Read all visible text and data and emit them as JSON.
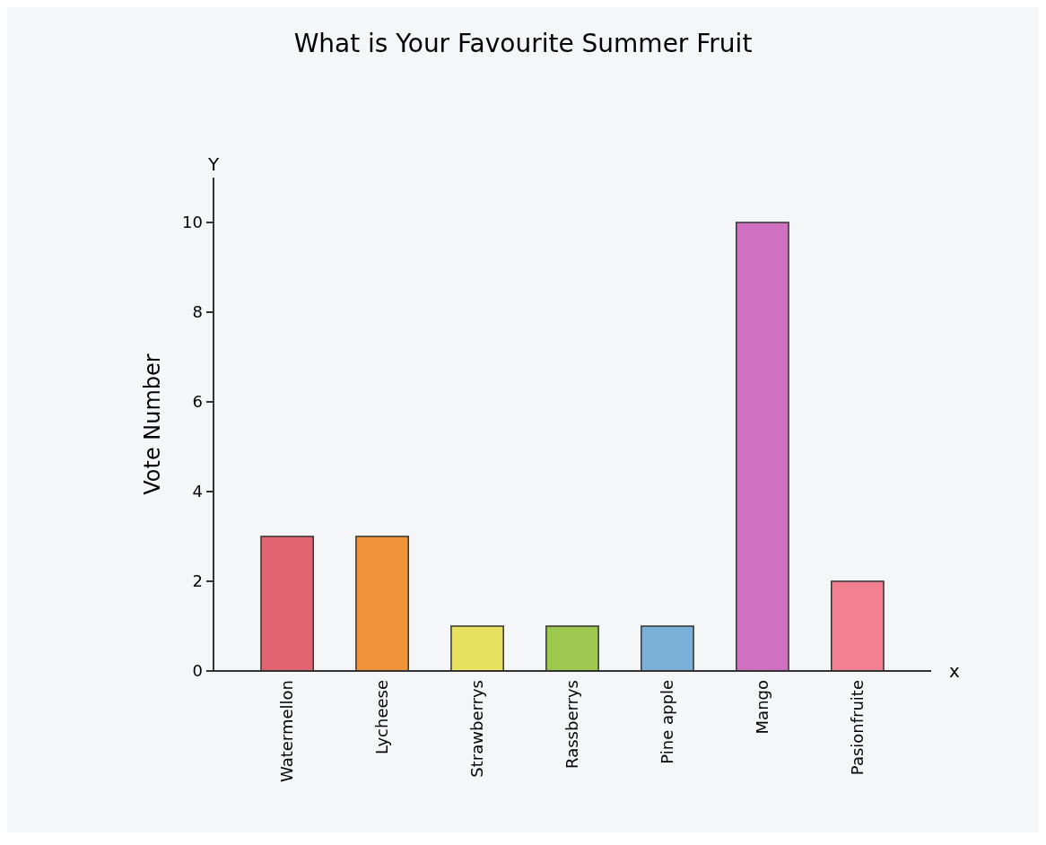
{
  "chart_data": {
    "type": "bar",
    "title": "What is Your Favourite Summer Fruit",
    "ylabel": "Vote Number",
    "categories": [
      "Watermellon",
      "Lycheese",
      "Strawberrys",
      "Rassberrys",
      "Pine apple",
      "Mango",
      "Pasionfruite"
    ],
    "values": [
      3,
      3,
      1,
      1,
      1,
      10,
      2
    ],
    "colors": [
      "#e06470",
      "#f0923a",
      "#e8e060",
      "#9cc850",
      "#7ab0d8",
      "#d070c0",
      "#f28090"
    ],
    "ylim": [
      0,
      11
    ],
    "yticks": [
      0,
      2,
      4,
      6,
      8,
      10
    ],
    "grid": false,
    "annotations": [
      "Y",
      "x"
    ]
  }
}
